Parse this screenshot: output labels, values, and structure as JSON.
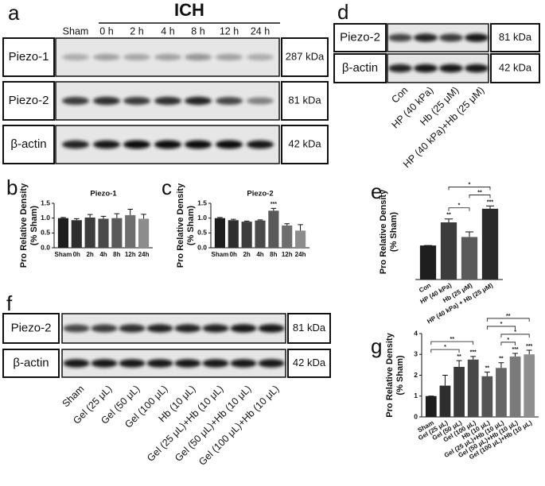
{
  "panel_labels": [
    "a",
    "b",
    "c",
    "d",
    "e",
    "f",
    "g"
  ],
  "blots": [
    {
      "header": "ICH",
      "lanes": [
        "Sham",
        "0 h",
        "2 h",
        "4 h",
        "8 h",
        "12 h",
        "24 h"
      ],
      "rows": [
        {
          "label": "Piezo-1",
          "size": "287 kDa"
        },
        {
          "label": "Piezo-2",
          "size": "81 kDa"
        },
        {
          "label": "β-actin",
          "size": "42 kDa"
        }
      ]
    },
    {
      "lanes": [
        "Con",
        "HP (40 kPa)",
        "Hb (25 μM)",
        "HP (40 kPa)+Hb (25 μM)"
      ],
      "rows": [
        {
          "label": "Piezo-2",
          "size": "81 kDa"
        },
        {
          "label": "β-actin",
          "size": "42 kDa"
        }
      ]
    },
    {
      "lanes": [
        "Sham",
        "Gel (25 μL)",
        "Gel (50 μL)",
        "Gel (100 μL)",
        "Hb (10 μL)",
        "Gel (25 μL)+Hb (10 μL)",
        "Gel (50 μL)+Hb (10 μL)",
        "Gel (100 μL)+Hb (10 μL)"
      ],
      "rows": [
        {
          "label": "Piezo-2",
          "size": "81 kDa"
        },
        {
          "label": "β-actin",
          "size": "42 kDa"
        }
      ]
    }
  ],
  "chart_data": [
    {
      "type": "bar",
      "title": "Piezo-1",
      "y_label": [
        "Pro Relative Density",
        "(% Sham)"
      ],
      "categories": [
        "Sham",
        "0h",
        "2h",
        "4h",
        "8h",
        "12h",
        "24h"
      ],
      "values": [
        1.0,
        0.93,
        1.02,
        0.98,
        1.0,
        1.1,
        0.98
      ],
      "errors": [
        0.02,
        0.05,
        0.1,
        0.08,
        0.15,
        0.2,
        0.15
      ],
      "colors": [
        "#1e1e1e",
        "#2e2e2e",
        "#3c3c3c",
        "#4a4a4a",
        "#5a5a5a",
        "#6e6e6e",
        "#8c8c8c"
      ],
      "ylim": [
        0,
        1.5
      ],
      "yticks": [
        {
          "value": 0,
          "label": "0.0"
        },
        0.5,
        {
          "value": 1,
          "label": "1.0"
        },
        1.5
      ]
    },
    {
      "type": "bar",
      "title": "Piezo-2",
      "y_label": [
        "Pro Relative Density",
        "(% Sham)"
      ],
      "categories": [
        "Sham",
        "0h",
        "2h",
        "4h",
        "8h",
        "12h",
        "24h"
      ],
      "values": [
        1.0,
        0.93,
        0.88,
        0.92,
        1.25,
        0.75,
        0.58
      ],
      "errors": [
        0.02,
        0.03,
        0.02,
        0.02,
        0.08,
        0.06,
        0.2
      ],
      "significance": [
        null,
        null,
        null,
        null,
        "***",
        null,
        null
      ],
      "colors": [
        "#1e1e1e",
        "#2e2e2e",
        "#3c3c3c",
        "#4a4a4a",
        "#5a5a5a",
        "#6e6e6e",
        "#8c8c8c"
      ],
      "ylim": [
        0,
        1.5
      ],
      "yticks": [
        {
          "value": 0,
          "label": "0.0"
        },
        0.5,
        {
          "value": 1,
          "label": "1.0"
        },
        1.5
      ]
    },
    {
      "type": "bar",
      "y_label": [
        "Pro Relative Density",
        "(% Sham)"
      ],
      "categories": [
        "Con",
        "HP (40 kPa)",
        "Hb (25 μM)",
        "HP (40 kPa) + Hb (25 μM)"
      ],
      "values": [
        1.0,
        1.68,
        1.25,
        2.08
      ],
      "errors": [
        0,
        0.1,
        0.15,
        0.08
      ],
      "significance": [
        null,
        "**",
        null,
        "***"
      ],
      "brackets": [
        {
          "from": "HP (40 kPa)",
          "to": "Hb (25 μM)",
          "label": "*"
        },
        {
          "from": "Hb (25 μM)",
          "to": "HP (40 kPa) + Hb (25 μM)",
          "label": "**"
        },
        {
          "from": "HP (40 kPa)",
          "to": "HP (40 kPa) + Hb (25 μM)",
          "label": "*"
        }
      ],
      "colors": [
        "#1e1e1e",
        "#3c3c3c",
        "#5a5a5a",
        "#2a2a2a"
      ],
      "ylim": [
        0,
        2.8
      ]
    },
    {
      "type": "bar",
      "y_label": [
        "Pro Relative Density",
        "(% Sham)"
      ],
      "categories": [
        "Sham",
        "Gel (25 μL)",
        "Gel (50 μL)",
        "Gel (100 μL)",
        "Hb (10 μL)",
        "Gel (25 μL)+Hb (10 μL)",
        "Gel (50 μL)+Hb (10 μL)",
        "Gel (100 μL)+Hb (10 μL)"
      ],
      "values": [
        1.0,
        1.5,
        2.4,
        2.75,
        1.95,
        2.35,
        2.9,
        3.0
      ],
      "errors": [
        0,
        0.5,
        0.3,
        0.15,
        0.2,
        0.25,
        0.15,
        0.2
      ],
      "significance": [
        null,
        null,
        "**",
        "***",
        "**",
        "**",
        "***",
        "***"
      ],
      "brackets": [
        {
          "from": "Sham",
          "to": "Gel (50 μL)",
          "label": "*"
        },
        {
          "from": "Sham",
          "to": "Gel (100 μL)",
          "label": "**"
        },
        {
          "from": "Gel (25 μL)+Hb (10 μL)",
          "to": "Gel (50 μL)+Hb (10 μL)",
          "label": "*"
        },
        {
          "from": "Gel (25 μL)+Hb (10 μL)",
          "to": "Gel (100 μL)+Hb (10 μL)",
          "label": "*"
        },
        {
          "from": "Hb (10 μL)",
          "to": "Gel (50 μL)+Hb (10 μL)",
          "label": "*"
        },
        {
          "from": "Hb (10 μL)",
          "to": "Gel (100 μL)+Hb (10 μL)",
          "label": "**"
        }
      ],
      "colors": [
        "#1e1e1e",
        "#2e2e2e",
        "#3a3a3a",
        "#484848",
        "#555555",
        "#666666",
        "#7a7a7a",
        "#8e8e8e"
      ],
      "ylim": [
        0,
        4
      ],
      "yticks": [
        0,
        1,
        2,
        3,
        4
      ]
    }
  ]
}
